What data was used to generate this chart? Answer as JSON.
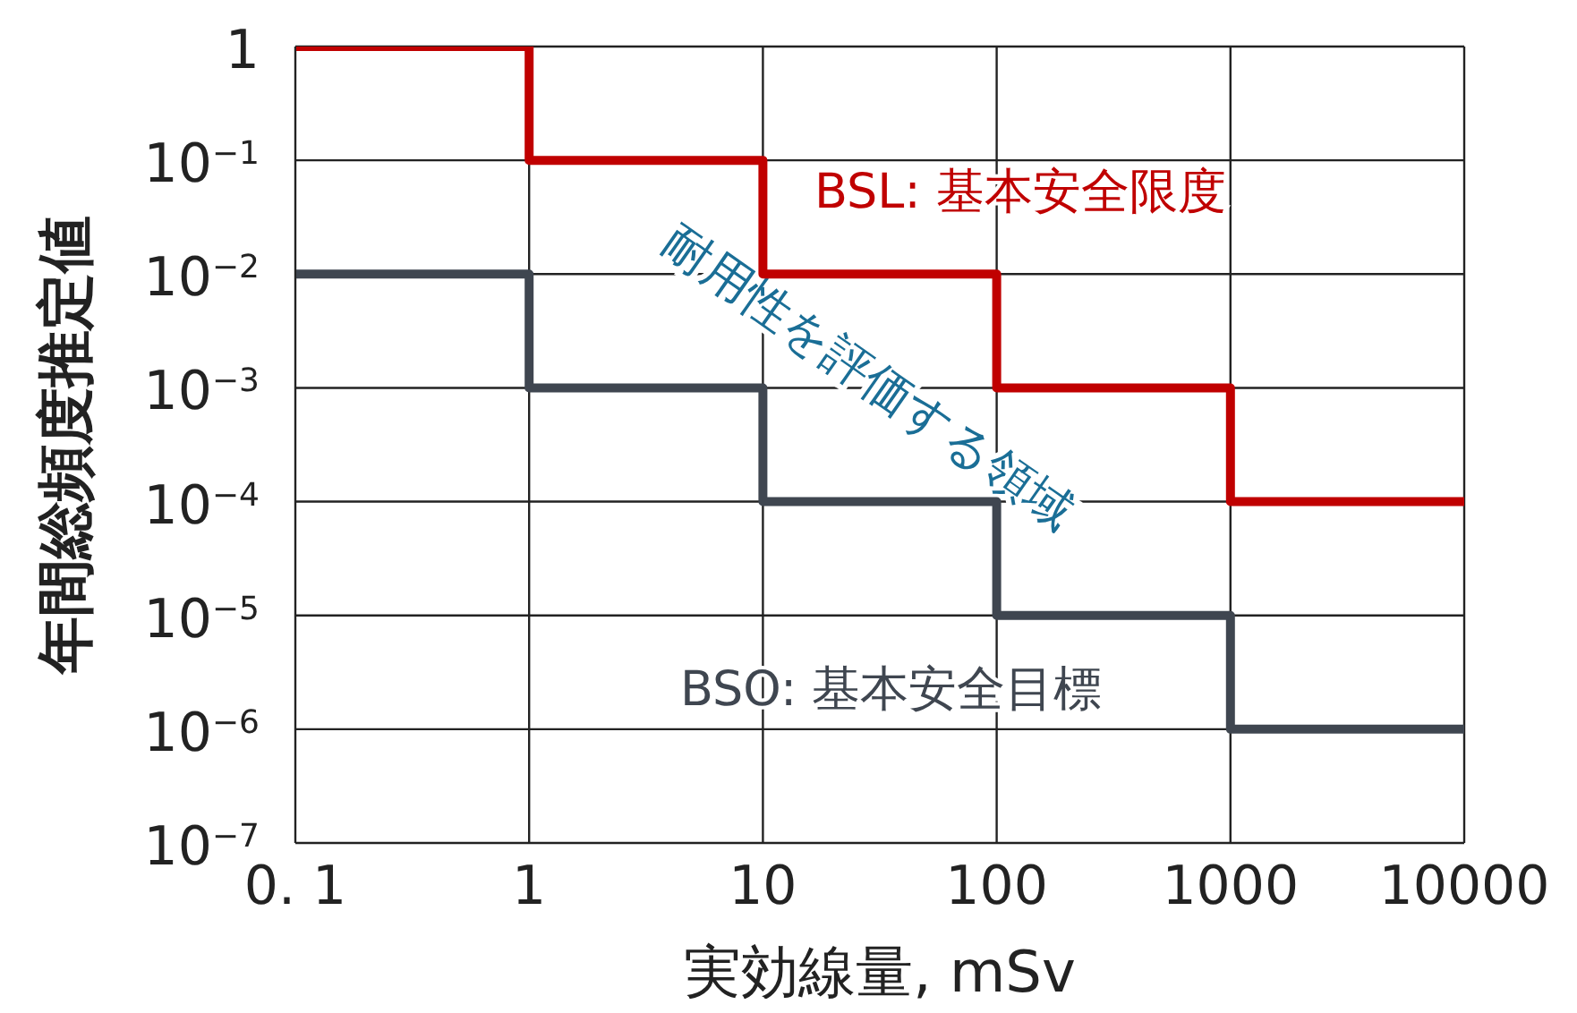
{
  "chart_data": {
    "type": "step",
    "xlabel": "実効線量, mSv",
    "ylabel": "年間総頻度推定値",
    "x": [
      0.1,
      1,
      10,
      100,
      1000,
      10000
    ],
    "series": [
      {
        "name": "BSL: 基本安全限度",
        "color": "#c00000",
        "values": [
          1,
          0.1,
          0.01,
          0.001,
          0.0001,
          0.0001
        ]
      },
      {
        "name": "BSO: 基本安全目標",
        "color": "#3f4650",
        "values": [
          0.01,
          0.001,
          0.0001,
          1e-05,
          1e-06,
          1e-06
        ]
      }
    ],
    "annotations": [
      "耐用性を評価する領域"
    ],
    "log": "xy",
    "grid": true,
    "marker": "none",
    "line_style": "solid",
    "xlim": [
      0.1,
      10000
    ],
    "xticks": [
      {
        "value": 0.1,
        "label": "0. 1"
      },
      1,
      10,
      100,
      1000,
      10000
    ],
    "ylim": [
      1e-07,
      1
    ],
    "yticks": [
      {
        "value": 1e-07,
        "label": "10$^{−7}$"
      },
      {
        "value": 1e-06,
        "label": "10$^{−6}$"
      },
      {
        "value": 1e-05,
        "label": "10$^{−5}$"
      },
      {
        "value": 0.0001,
        "label": "10$^{−4}$"
      },
      {
        "value": 0.001,
        "label": "10$^{−3}$"
      },
      {
        "value": 0.01,
        "label": "10$^{−2}$"
      },
      {
        "value": 0.1,
        "label": "10$^{−1}$"
      },
      1
    ]
  }
}
